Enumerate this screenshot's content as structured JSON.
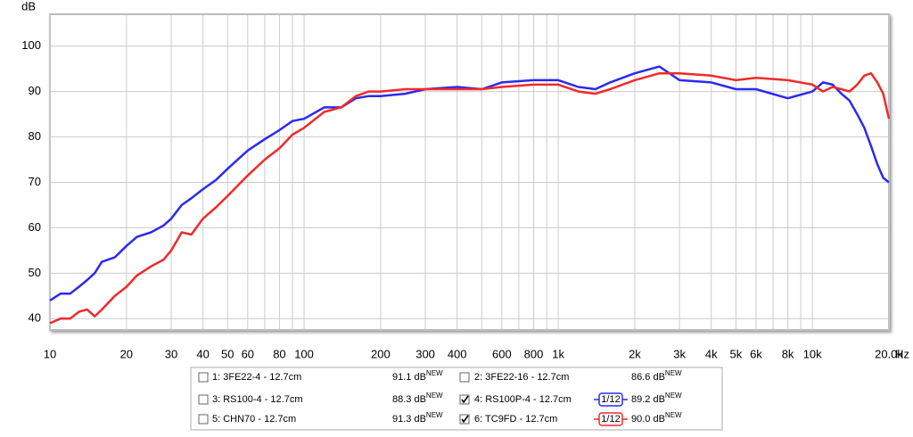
{
  "chart_data": {
    "type": "line",
    "x_scale": "log",
    "y_label": "dB",
    "x_label": "Hz",
    "grid": true,
    "xlim": [
      10,
      20000
    ],
    "ylim": [
      37.5,
      107
    ],
    "yticks": [
      40,
      50,
      60,
      70,
      80,
      90,
      100
    ],
    "xticks": [
      10,
      20,
      30,
      40,
      50,
      60,
      80,
      100,
      200,
      300,
      400,
      600,
      800,
      {
        "value": 1000,
        "label": "1k"
      },
      {
        "value": 2000,
        "label": "2k"
      },
      {
        "value": 3000,
        "label": "3k"
      },
      {
        "value": 4000,
        "label": "4k"
      },
      {
        "value": 5000,
        "label": "5k"
      },
      {
        "value": 6000,
        "label": "6k"
      },
      {
        "value": 8000,
        "label": "8k"
      },
      {
        "value": 10000,
        "label": "10k"
      },
      {
        "value": 20000,
        "label": "20.0k"
      }
    ],
    "x_minor_grid": [
      70,
      90,
      500,
      700,
      900,
      7000,
      9000
    ],
    "x": [
      10,
      11,
      12,
      13,
      14,
      15,
      16,
      18,
      20,
      22,
      25,
      28,
      30,
      33,
      36,
      40,
      45,
      50,
      60,
      70,
      80,
      90,
      100,
      120,
      140,
      160,
      180,
      200,
      250,
      300,
      400,
      500,
      600,
      800,
      1000,
      1200,
      1400,
      1600,
      2000,
      2500,
      3000,
      4000,
      5000,
      6000,
      8000,
      10000,
      11000,
      12000,
      13000,
      14000,
      15000,
      16000,
      17000,
      18000,
      19000,
      20000
    ],
    "series": [
      {
        "color": "#2a2af0",
        "values": [
          44,
          45.5,
          45.5,
          47,
          48.5,
          50,
          52.5,
          53.5,
          56,
          58,
          59,
          60.5,
          62,
          65,
          66.5,
          68.5,
          70.5,
          73,
          77,
          79.5,
          81.5,
          83.5,
          84,
          86.5,
          86.5,
          88.5,
          89,
          89,
          89.5,
          90.5,
          91,
          90.5,
          92,
          92.5,
          92.5,
          91,
          90.5,
          92,
          94,
          95.5,
          92.5,
          92,
          90.5,
          90.5,
          88.5,
          90,
          92,
          91.5,
          89.5,
          88,
          85,
          82,
          78,
          74,
          71,
          70
        ]
      },
      {
        "color": "#f02a2a",
        "values": [
          39,
          40,
          40,
          41.5,
          42,
          40.5,
          42,
          45,
          47,
          49.5,
          51.5,
          53,
          55,
          59,
          58.5,
          62,
          64.5,
          67,
          71.5,
          75,
          77.5,
          80.5,
          82,
          85.5,
          86.5,
          89,
          90,
          90,
          90.5,
          90.5,
          90.5,
          90.5,
          91,
          91.5,
          91.5,
          90,
          89.5,
          90.5,
          92.5,
          94,
          94,
          93.5,
          92.5,
          93,
          92.5,
          91.5,
          90,
          91,
          90.5,
          90,
          91.5,
          93.5,
          94,
          92,
          89.5,
          84
        ]
      }
    ],
    "legend_entries": [
      {
        "label": "1: 3FE22-4 - 12.7cm",
        "level": "91.1 dB",
        "badge": "NEW",
        "color": "#10b0c0",
        "checked": false
      },
      {
        "label": "2: 3FE22-16 - 12.7cm",
        "level": "86.6 dB",
        "badge": "NEW",
        "color": "#107070",
        "checked": false
      },
      {
        "label": "3: RS100-4 - 12.7cm",
        "level": "88.3 dB",
        "badge": "NEW",
        "color": "#30d030",
        "checked": false
      },
      {
        "label": "4: RS100P-4 - 12.7cm",
        "level": "89.2 dB",
        "badge": "NEW",
        "color": "#2a2af0",
        "checked": true,
        "smoothing": "1/12"
      },
      {
        "label": "5: CHN70 - 12.7cm",
        "level": "91.3 dB",
        "badge": "NEW",
        "color": "#d020d0",
        "checked": false
      },
      {
        "label": "6: TC9FD - 12.7cm",
        "level": "90.0 dB",
        "badge": "NEW",
        "color": "#f02a2a",
        "checked": true,
        "smoothing": "1/12"
      }
    ]
  }
}
